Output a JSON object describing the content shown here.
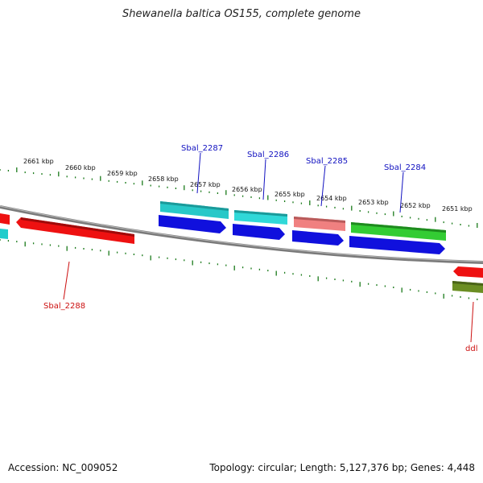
{
  "header": {
    "title": "Shewanella baltica OS155, complete genome"
  },
  "footer": {
    "accession": "Accession: NC_009052",
    "topology": "Topology: circular; Length: 5,127,376 bp; Genes: 4,448"
  },
  "colors": {
    "backbone": "#8a8a8a",
    "ticks": "#1a7a1a",
    "label_blue": "#1010c0",
    "label_red": "#cc1010"
  },
  "ticks": [
    {
      "label": "2661 kbp"
    },
    {
      "label": "2660 kbp"
    },
    {
      "label": "2659 kbp"
    },
    {
      "label": "2658 kbp"
    },
    {
      "label": "2657 kbp"
    },
    {
      "label": "2656 kbp"
    },
    {
      "label": "2655 kbp"
    },
    {
      "label": "2654 kbp"
    },
    {
      "label": "2653 kbp"
    },
    {
      "label": "2652 kbp"
    },
    {
      "label": "2651 kbp"
    }
  ],
  "gene_labels": [
    {
      "text": "Sbal_2287"
    },
    {
      "text": "Sbal_2286"
    },
    {
      "text": "Sbal_2285"
    },
    {
      "text": "Sbal_2284"
    },
    {
      "text": "Sbal_2288"
    },
    {
      "text": "ddl"
    }
  ]
}
